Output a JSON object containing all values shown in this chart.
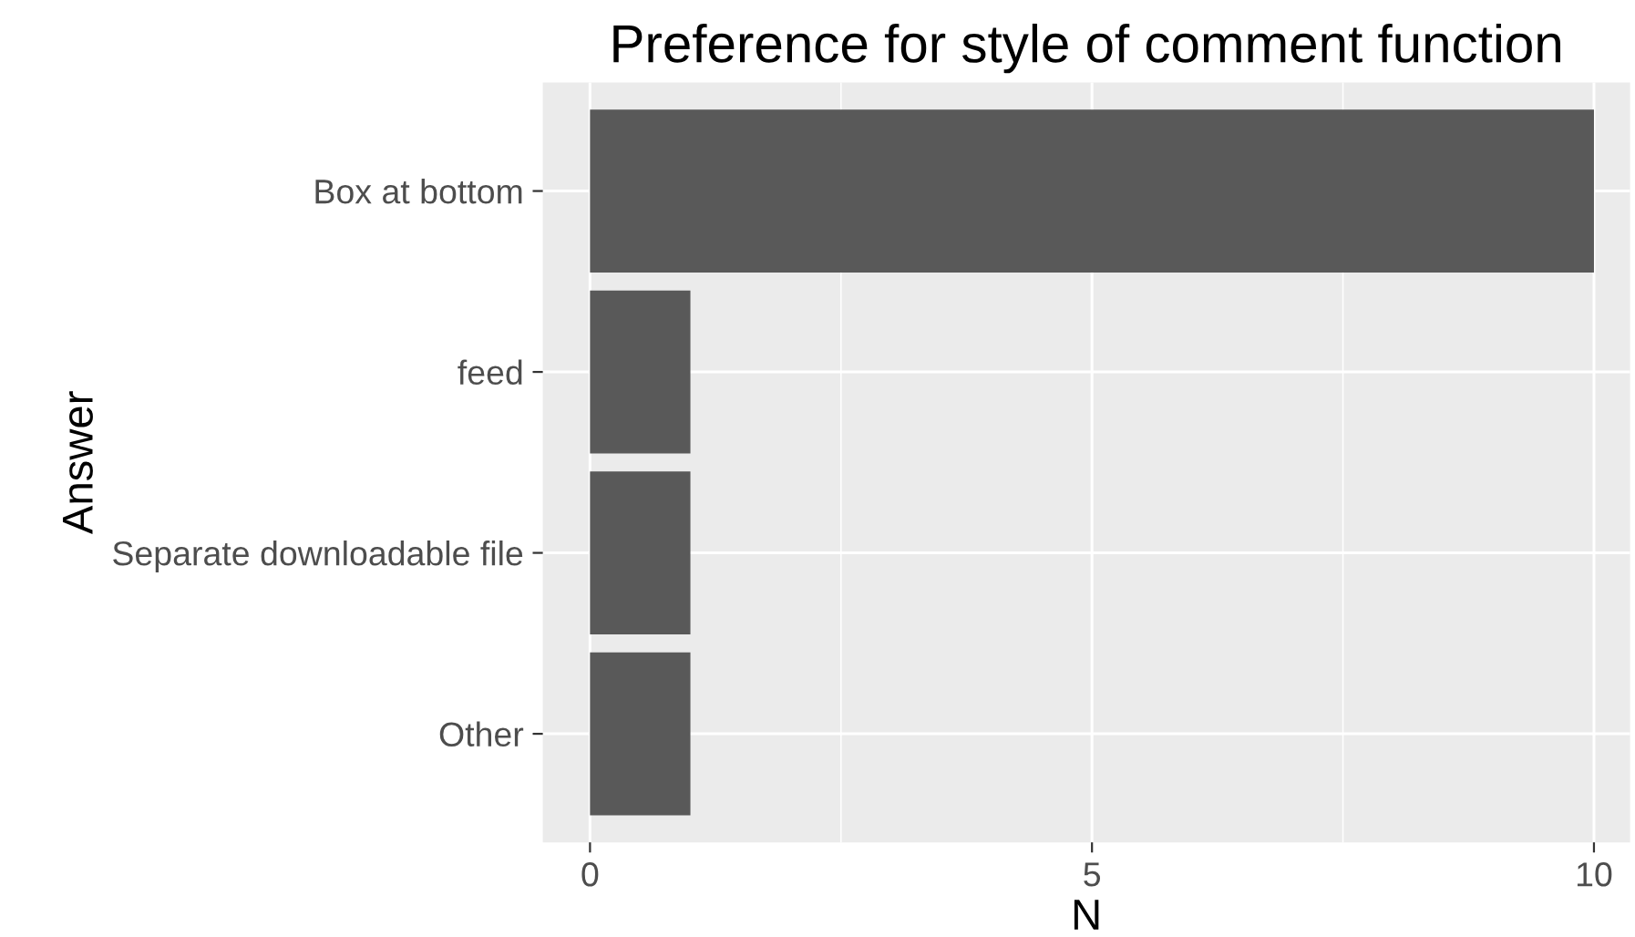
{
  "chart_data": {
    "type": "bar",
    "orientation": "horizontal",
    "title": "Preference for style of comment function",
    "xlabel": "N",
    "ylabel": "Answer",
    "categories": [
      "Box at bottom",
      "feed",
      "Separate downloadable file",
      "Other"
    ],
    "values": [
      10,
      1,
      1,
      1
    ],
    "color": "#595959",
    "xlim": [
      -0.47,
      10.36
    ],
    "xticks": [
      0,
      {
        "value": 2.5,
        "label": null
      },
      5,
      {
        "value": 7.5,
        "label": null
      },
      10
    ],
    "grid": true,
    "legend": false
  }
}
